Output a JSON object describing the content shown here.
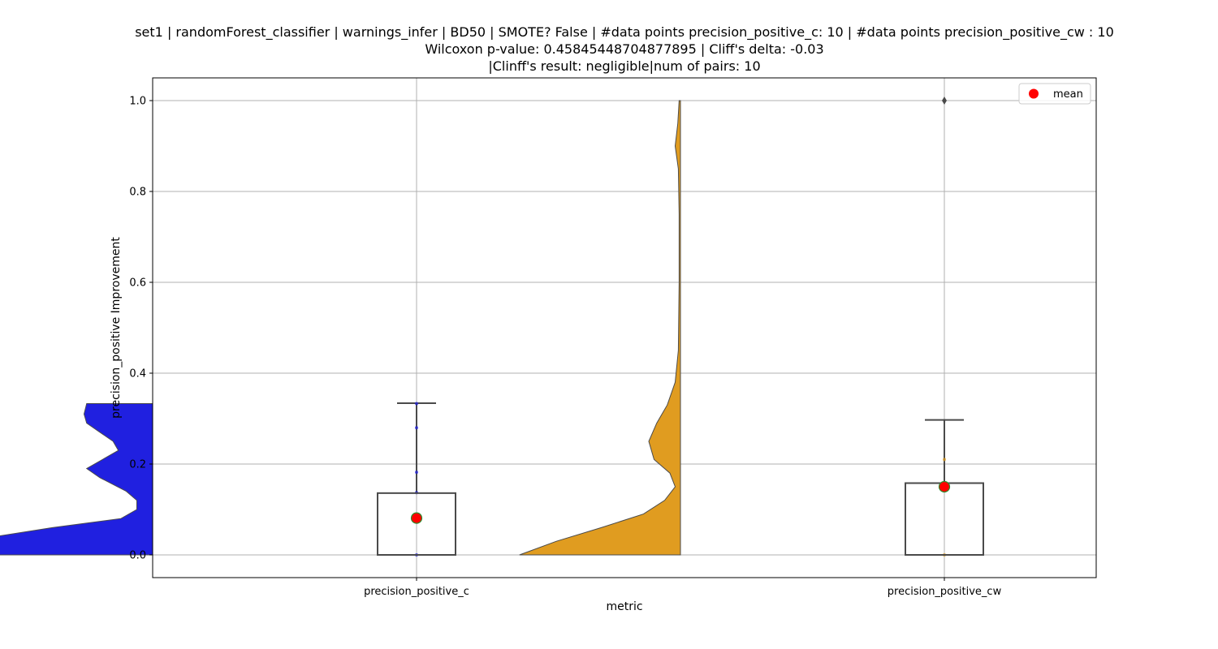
{
  "chart_data": {
    "type": "violin+box",
    "title_lines": [
      "set1 | randomForest_classifier | warnings_infer | BD50 | SMOTE? False | #data points precision_positive_c: 10 | #data points precision_positive_cw : 10",
      "Wilcoxon p-value: 0.45845448704877895 | Cliff's delta: -0.03",
      "|Clinff's result: negligible|num of pairs: 10"
    ],
    "xlabel": "metric",
    "ylabel": "precision_positive Improvement",
    "categories": [
      "precision_positive_c",
      "precision_positive_cw"
    ],
    "ylim": [
      -0.05,
      1.05
    ],
    "yticks": [
      0.0,
      0.2,
      0.4,
      0.6,
      0.8,
      1.0
    ],
    "ytick_labels": [
      "0.0",
      "0.2",
      "0.4",
      "0.6",
      "0.8",
      "1.0"
    ],
    "grid": true,
    "legend": {
      "position": "top-right",
      "entries": [
        "mean"
      ]
    },
    "colors": {
      "violin_c": "#2020e0",
      "violin_cw": "#e09c20",
      "mean": "#ff0000",
      "mean_edge": "#2e8b2e",
      "box_line": "#4a4a4a",
      "grid": "#b0b0b0"
    },
    "violins": [
      {
        "category": "precision_positive_c",
        "side": "left",
        "profile": [
          [
            0.0,
            1.05
          ],
          [
            0.02,
            0.8
          ],
          [
            0.04,
            0.6
          ],
          [
            0.06,
            0.38
          ],
          [
            0.08,
            0.12
          ],
          [
            0.1,
            0.06
          ],
          [
            0.12,
            0.06
          ],
          [
            0.14,
            0.1
          ],
          [
            0.17,
            0.2
          ],
          [
            0.19,
            0.25
          ],
          [
            0.21,
            0.19
          ],
          [
            0.23,
            0.13
          ],
          [
            0.25,
            0.15
          ],
          [
            0.27,
            0.2
          ],
          [
            0.29,
            0.25
          ],
          [
            0.31,
            0.26
          ],
          [
            0.333,
            0.25
          ]
        ]
      },
      {
        "category": "precision_positive_cw",
        "side": "left",
        "profile": [
          [
            0.0,
            0.61
          ],
          [
            0.03,
            0.47
          ],
          [
            0.06,
            0.3
          ],
          [
            0.09,
            0.14
          ],
          [
            0.12,
            0.06
          ],
          [
            0.15,
            0.02
          ],
          [
            0.18,
            0.04
          ],
          [
            0.21,
            0.1
          ],
          [
            0.25,
            0.12
          ],
          [
            0.29,
            0.09
          ],
          [
            0.33,
            0.05
          ],
          [
            0.38,
            0.02
          ],
          [
            0.45,
            0.008
          ],
          [
            0.6,
            0.005
          ],
          [
            0.75,
            0.005
          ],
          [
            0.85,
            0.008
          ],
          [
            0.9,
            0.02
          ],
          [
            0.95,
            0.01
          ],
          [
            1.0,
            0.005
          ]
        ]
      }
    ],
    "boxes": [
      {
        "category": "precision_positive_c",
        "q1": 0.0,
        "q3": 0.136,
        "median": 0.0,
        "whisker_low": 0.0,
        "whisker_high": 0.334,
        "mean": 0.081,
        "points": [
          0.0,
          0.137,
          0.182,
          0.28,
          0.333
        ],
        "outliers": []
      },
      {
        "category": "precision_positive_cw",
        "q1": 0.0,
        "q3": 0.158,
        "median": 0.0,
        "whisker_low": 0.0,
        "whisker_high": 0.297,
        "mean": 0.15,
        "points": [
          0.0,
          0.15,
          0.21
        ],
        "outliers": [
          1.0
        ]
      }
    ]
  }
}
